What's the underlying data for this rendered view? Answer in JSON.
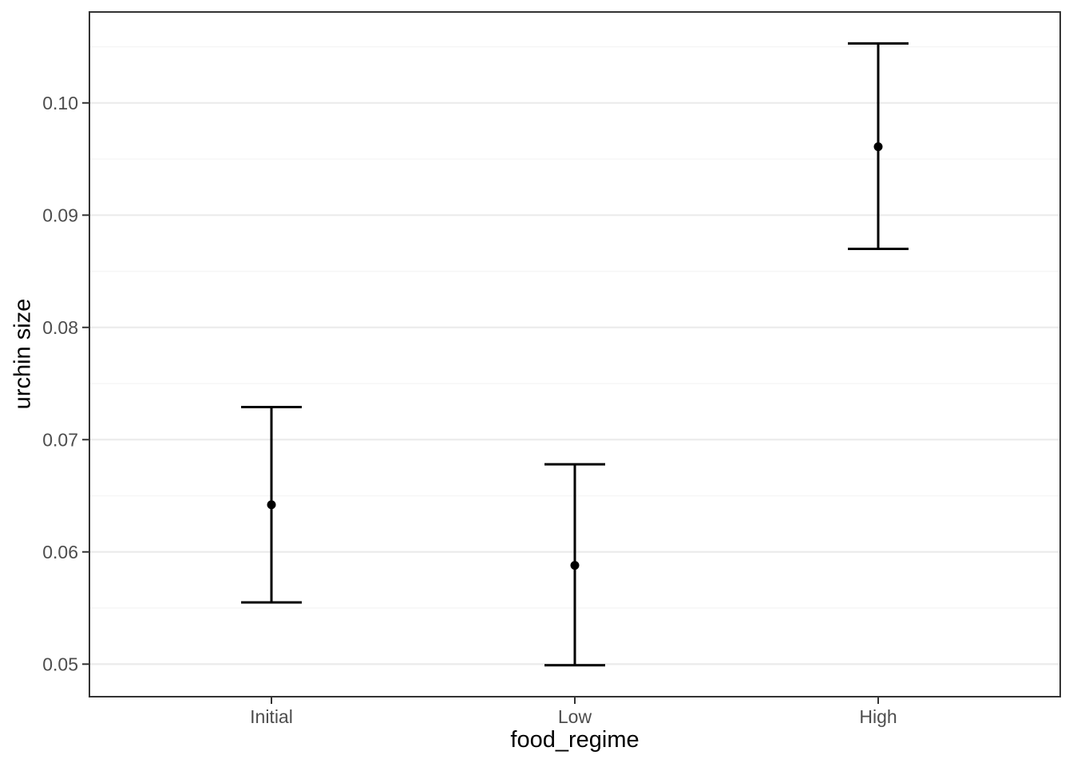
{
  "chart_data": {
    "type": "scatter",
    "subtype": "point-with-errorbar",
    "title": "",
    "xlabel": "food_regime",
    "ylabel": "urchin size",
    "categories": [
      "Initial",
      "Low",
      "High"
    ],
    "series": [
      {
        "name": "urchin_size",
        "values": [
          0.0642,
          0.0588,
          0.0961
        ],
        "error_low": [
          0.0555,
          0.0499,
          0.087
        ],
        "error_high": [
          0.0729,
          0.0678,
          0.1053
        ]
      }
    ],
    "ylim": [
      0.0471,
      0.1081
    ],
    "y_major_ticks": [
      0.05,
      0.06,
      0.07,
      0.08,
      0.09,
      0.1
    ],
    "y_tick_labels": [
      "0.05",
      "0.06",
      "0.07",
      "0.08",
      "0.09",
      "0.10"
    ],
    "y_minor_ticks": [
      0.055,
      0.065,
      0.075,
      0.085,
      0.095,
      0.105
    ],
    "grid": "major-and-minor-horizontal",
    "legend_position": "none",
    "theme": {
      "background": "#ffffff",
      "panel_background": "#ffffff",
      "panel_border": "#333333",
      "grid_major": "#ebebeb",
      "grid_minor": "#f5f5f5",
      "axis_text": "#4d4d4d",
      "axis_tick": "#333333",
      "axis_title": "#000000",
      "marker": "#000000"
    }
  }
}
